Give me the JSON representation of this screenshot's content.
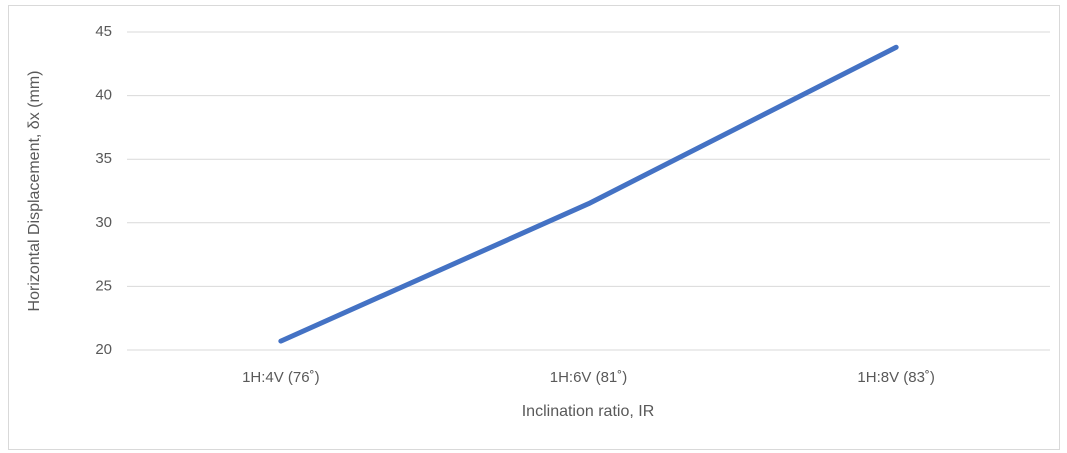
{
  "chart_data": {
    "type": "line",
    "x_label": "Inclination ratio, IR",
    "y_label": "Horizontal Displacement, δx (mm)",
    "categories": [
      "1H:4V (76˚)",
      "1H:6V (81˚)",
      "1H:8V (83˚)"
    ],
    "series": [
      {
        "name": "Horizontal Displacement",
        "color": "#4472c4",
        "values": [
          20.7,
          31.5,
          43.8
        ]
      }
    ],
    "ylim": [
      20,
      45
    ],
    "yticks": [
      20,
      25,
      30,
      35,
      40,
      45
    ],
    "grid": true
  }
}
